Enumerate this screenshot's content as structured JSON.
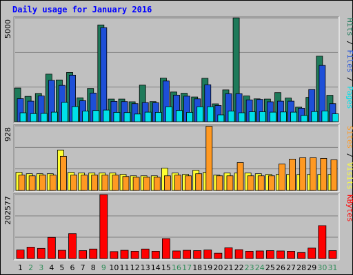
{
  "title": "Daily usage for January 2016",
  "chart_data": [
    {
      "type": "bar",
      "panel": "pages-files-hits",
      "ymax_label": "5000",
      "ylim": [
        0,
        5000
      ],
      "legend": [
        "Pages",
        "Files",
        "Hits"
      ],
      "categories": [
        "1",
        "2",
        "3",
        "4",
        "5",
        "6",
        "7",
        "8",
        "9",
        "10",
        "11",
        "12",
        "13",
        "14",
        "15",
        "16",
        "17",
        "18",
        "19",
        "20",
        "21",
        "22",
        "23",
        "24",
        "25",
        "26",
        "27",
        "28",
        "29",
        "30",
        "31"
      ],
      "series": [
        {
          "name": "Hits",
          "color": "#1e7a5a",
          "values": [
            1620,
            1220,
            1360,
            2290,
            2010,
            2370,
            1150,
            1600,
            4660,
            1090,
            1090,
            960,
            1760,
            970,
            2100,
            1430,
            1370,
            1190,
            2090,
            860,
            1530,
            5030,
            1240,
            1100,
            1090,
            1400,
            1140,
            700,
            1170,
            3160,
            1270
          ]
        },
        {
          "name": "Files",
          "color": "#1e4fd8",
          "values": [
            1110,
            990,
            1240,
            1990,
            1750,
            2240,
            1010,
            1380,
            4530,
            980,
            970,
            870,
            920,
            910,
            1960,
            1280,
            1230,
            1100,
            1780,
            780,
            1350,
            1350,
            1050,
            1070,
            960,
            990,
            990,
            650,
            1550,
            2710,
            870
          ]
        },
        {
          "name": "Pages",
          "color": "#00e0e8",
          "values": [
            430,
            390,
            400,
            460,
            930,
            730,
            510,
            540,
            560,
            450,
            440,
            370,
            460,
            450,
            720,
            540,
            450,
            720,
            720,
            330,
            510,
            430,
            480,
            480,
            460,
            470,
            460,
            300,
            490,
            520,
            380
          ]
        }
      ]
    },
    {
      "type": "bar",
      "panel": "visits-sites",
      "ymax_label": "928",
      "ylim": [
        0,
        928
      ],
      "legend": [
        "Visits",
        "Sites"
      ],
      "categories": [
        "1",
        "2",
        "3",
        "4",
        "5",
        "6",
        "7",
        "8",
        "9",
        "10",
        "11",
        "12",
        "13",
        "14",
        "15",
        "16",
        "17",
        "18",
        "19",
        "20",
        "21",
        "22",
        "23",
        "24",
        "25",
        "26",
        "27",
        "28",
        "29",
        "30",
        "31"
      ],
      "series": [
        {
          "name": "Visits",
          "color": "#ffff33",
          "values": [
            260,
            240,
            240,
            240,
            580,
            260,
            250,
            250,
            250,
            250,
            230,
            210,
            210,
            210,
            320,
            250,
            230,
            290,
            260,
            220,
            250,
            250,
            250,
            240,
            230,
            230,
            230,
            230,
            230,
            230,
            230
          ]
        },
        {
          "name": "Sites",
          "color": "#ff9922",
          "values": [
            220,
            210,
            220,
            220,
            490,
            220,
            220,
            220,
            220,
            220,
            200,
            190,
            190,
            190,
            210,
            220,
            210,
            240,
            920,
            210,
            210,
            400,
            210,
            210,
            210,
            380,
            450,
            470,
            470,
            460,
            440
          ]
        }
      ]
    },
    {
      "type": "bar",
      "panel": "kbytes",
      "ymax_label": "202577",
      "ylim": [
        0,
        202577
      ],
      "legend": [
        "KBytes"
      ],
      "categories": [
        "1",
        "2",
        "3",
        "4",
        "5",
        "6",
        "7",
        "8",
        "9",
        "10",
        "11",
        "12",
        "13",
        "14",
        "15",
        "16",
        "17",
        "18",
        "19",
        "20",
        "21",
        "22",
        "23",
        "24",
        "25",
        "26",
        "27",
        "28",
        "29",
        "30",
        "31"
      ],
      "series": [
        {
          "name": "KBytes",
          "color": "#ff0000",
          "values": [
            27000,
            36000,
            32000,
            67000,
            26000,
            79000,
            25000,
            30000,
            203000,
            22000,
            26000,
            23000,
            30000,
            23000,
            63000,
            24000,
            26000,
            25000,
            27000,
            17000,
            34000,
            28000,
            23000,
            24000,
            25000,
            24000,
            23000,
            19000,
            33000,
            104000,
            25000
          ]
        }
      ]
    }
  ],
  "weekend_color": "#2e8b57",
  "weekday_color": "#000000",
  "weekend_days": [
    "2",
    "3",
    "9",
    "16",
    "17",
    "23",
    "24",
    "30",
    "31"
  ]
}
